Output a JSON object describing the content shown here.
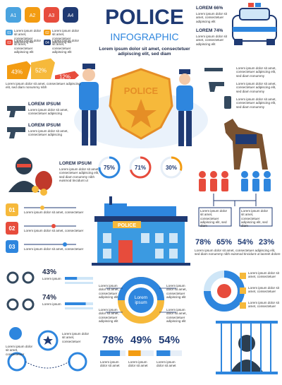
{
  "header": {
    "title": "POLICE",
    "subtitle": "INFOGRAPHIC",
    "text": "Lorem ipsum dolor sit amet, consectetuer adipiscing elit, sed diam"
  },
  "tags": [
    "A1",
    "A2",
    "A3",
    "A4"
  ],
  "tag_items": [
    {
      "number": "01",
      "text": "Lorem ipsum dolor sit amet, consectetuer adipiscing elit"
    },
    {
      "number": "02",
      "text": "Lorem ipsum dolor sit amet, consectetuer adipiscing elit"
    },
    {
      "number": "03",
      "text": "Lorem ipsum dolor sit amet, consectetuer adipiscing elit"
    },
    {
      "number": "04",
      "text": "Lorem ipsum dolor sit amet, consectetuer adipiscing elit"
    }
  ],
  "arrow_stats": {
    "items": [
      {
        "value": 43,
        "label": "43%"
      },
      {
        "value": 52,
        "label": "52%"
      },
      {
        "value": 12,
        "label": "12%"
      }
    ],
    "text": "Lorem ipsum dolor sit amet, consectetuer adipiscing elit, sed diam nonummy nibh"
  },
  "top_right": [
    {
      "title": "LOREM 66%",
      "text": "Lorem ipsum dolor sit amet, consectetuer adipiscing elit"
    },
    {
      "title": "LOREM 74%",
      "text": "Lorem ipsum dolor sit amet, consectetuer adipiscing elit"
    }
  ],
  "weapons": [
    "Lorem ipsum dolor sit amet, consectetuer adipiscing elit, sed diam nonummy",
    "Lorem ipsum dolor sit amet, consectetuer adipiscing elit, sed diam nonummy",
    "Lorem ipsum dolor sit amet, consectetuer adipiscing elit, sed diam nonummy"
  ],
  "guns": [
    {
      "title": "LOREM IPSUM",
      "text": "Lorem ipsum dolor sit amet, consectetuer adipiscing"
    },
    {
      "title": "LOREM IPSUM",
      "text": "Lorem ipsum dolor sit amet, consectetuer adipiscing"
    }
  ],
  "thief": {
    "title": "LOREM IPSUM",
    "text": "Lorem ipsum dolor sit amet, consectetuer adipiscing elit, sed diam nonummy nibh euismod tincidunt ut"
  },
  "rings": [
    {
      "value": 75,
      "label": "75%"
    },
    {
      "value": 71,
      "label": "71%"
    },
    {
      "value": 30,
      "label": "30%"
    }
  ],
  "people": [
    "Lorem ipsum dolor sit amet, consectetuer adipiscing elit, sed diam",
    "Lorem ipsum dolor sit amet, consectetuer adipiscing elit, sed diam"
  ],
  "steps": [
    {
      "number": "01",
      "text": "Lorem ipsum dolor sit amet, consectetuer"
    },
    {
      "number": "02",
      "text": "Lorem ipsum dolor sit amet, consectetuer"
    },
    {
      "number": "03",
      "text": "Lorem ipsum dolor sit amet, consectetuer"
    }
  ],
  "police_sign": "POLICE",
  "percents": {
    "items": [
      "78%",
      "65%",
      "54%",
      "23%"
    ],
    "text": "Lorem ipsum dolor sit amet, consectetuer adipiscing elit, sed diam nonummy nibh euismod tincidunt ut laoreet dolore"
  },
  "cuffs": [
    {
      "value": 43,
      "label": "43%",
      "text": "Lorem ipsum"
    },
    {
      "value": 74,
      "label": "74%",
      "text": "Lorem ipsum"
    }
  ],
  "center_donut": {
    "label": "Lorem ipsum",
    "notes": [
      "Lorem ipsum dolor sit amet, consectetuer adipiscing elit",
      "Lorem ipsum dolor sit amet, consectetuer adipiscing elit",
      "Lorem ipsum dolor sit amet, consectetuer adipiscing elit",
      "Lorem ipsum dolor sit amet, consectetuer adipiscing elit"
    ]
  },
  "right_donut_notes": [
    "Lorem ipsum dolor sit amet, consectetuer",
    "Lorem ipsum dolor sit amet, consectetuer",
    "Lorem ipsum dolor sit amet, consectetuer"
  ],
  "bottom_stats": [
    {
      "value": 78,
      "label": "78%"
    },
    {
      "value": 49,
      "label": "49%"
    },
    {
      "value": 54,
      "label": "54%"
    }
  ],
  "bottom_stats_text": "Lorem ipsum dolor sit amet",
  "icons_text": [
    "Lorem ipsum dolor sit amet, consectetuer",
    "Lorem ipsum dolor sit amet, consectetuer"
  ]
}
